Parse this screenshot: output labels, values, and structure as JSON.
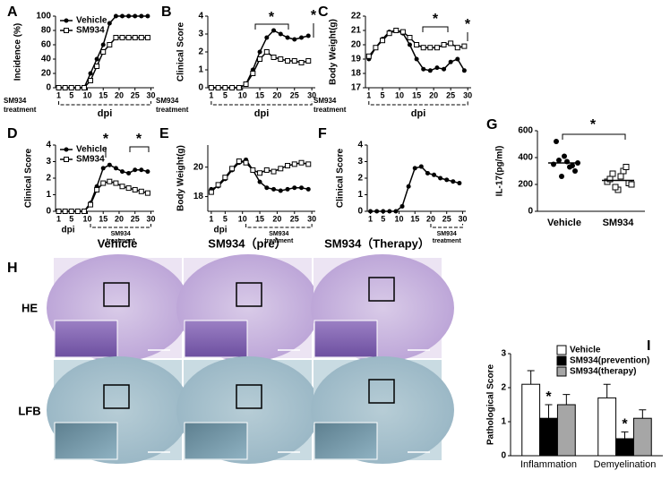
{
  "chart_data": [
    {
      "type": "line",
      "panel": "A",
      "ylabel": "Incidence (%)",
      "xlabel": "dpi",
      "treatment_label": [
        "SM934",
        "treatment"
      ],
      "treatment_days": [
        1,
        30
      ],
      "x": [
        1,
        3,
        5,
        7,
        9,
        11,
        13,
        15,
        17,
        19,
        21,
        23,
        25,
        27,
        29
      ],
      "xlim": [
        0,
        31
      ],
      "xticks": [
        1,
        5,
        10,
        15,
        20,
        25,
        30
      ],
      "ylim": [
        0,
        100
      ],
      "yticks": [
        0,
        20,
        40,
        60,
        80,
        100
      ],
      "legend": "upper left",
      "series": [
        {
          "name": "Vehicle",
          "color": "#000000",
          "marker": "circle",
          "values": [
            0,
            0,
            0,
            0,
            0,
            20,
            40,
            60,
            90,
            100,
            100,
            100,
            100,
            100,
            100
          ]
        },
        {
          "name": "SM934",
          "color": "#000000",
          "marker": "square",
          "values": [
            0,
            0,
            0,
            0,
            0,
            10,
            30,
            50,
            60,
            70,
            70,
            70,
            70,
            70,
            70
          ]
        }
      ]
    },
    {
      "type": "line",
      "panel": "B",
      "ylabel": "Clinical Score",
      "xlabel": "dpi",
      "treatment_label": [
        "SM934",
        "treatment"
      ],
      "treatment_days": [
        1,
        30
      ],
      "x": [
        1,
        3,
        5,
        7,
        9,
        11,
        13,
        15,
        17,
        19,
        21,
        23,
        25,
        27,
        29
      ],
      "xlim": [
        0,
        31
      ],
      "xticks": [
        1,
        5,
        10,
        15,
        20,
        25,
        30
      ],
      "ylim": [
        0,
        4
      ],
      "yticks": [
        0,
        1,
        2,
        3,
        4
      ],
      "annotations": [
        "*",
        "*"
      ],
      "series": [
        {
          "color": "#000000",
          "marker": "circle",
          "values": [
            0,
            0,
            0,
            0,
            0,
            0.2,
            1.0,
            2.0,
            2.8,
            3.2,
            3.0,
            2.8,
            2.7,
            2.8,
            2.9
          ]
        },
        {
          "color": "#000000",
          "marker": "square",
          "values": [
            0,
            0,
            0,
            0,
            0,
            0.2,
            0.8,
            1.6,
            2.0,
            1.7,
            1.6,
            1.5,
            1.5,
            1.4,
            1.5
          ]
        }
      ]
    },
    {
      "type": "line",
      "panel": "C",
      "ylabel": "Body Weight(g)",
      "xlabel": "dpi",
      "treatment_label": [
        "SM934",
        "treatment"
      ],
      "treatment_days": [
        1,
        30
      ],
      "x": [
        1,
        3,
        5,
        7,
        9,
        11,
        13,
        15,
        17,
        19,
        21,
        23,
        25,
        27,
        29
      ],
      "xlim": [
        0,
        31
      ],
      "xticks": [
        1,
        5,
        10,
        15,
        20,
        25,
        30
      ],
      "ylim": [
        17,
        22
      ],
      "yticks": [
        17,
        18,
        19,
        20,
        21,
        22
      ],
      "annotations": [
        "*",
        "*"
      ],
      "series": [
        {
          "color": "#000000",
          "marker": "circle",
          "values": [
            19.0,
            19.8,
            20.4,
            20.9,
            21.0,
            20.8,
            20.0,
            19.0,
            18.3,
            18.2,
            18.4,
            18.3,
            18.8,
            19.0,
            18.2
          ]
        },
        {
          "color": "#000000",
          "marker": "square",
          "values": [
            19.2,
            19.8,
            20.3,
            20.8,
            21.0,
            20.9,
            20.5,
            20.0,
            19.8,
            19.8,
            19.8,
            20.0,
            20.1,
            19.8,
            19.9
          ]
        }
      ]
    },
    {
      "type": "line",
      "panel": "D",
      "ylabel": "Clinical Score",
      "xlabel": "dpi",
      "treatment_label": [
        "SM934",
        "treatment"
      ],
      "treatment_days": [
        11,
        30
      ],
      "x": [
        1,
        3,
        5,
        7,
        9,
        11,
        13,
        15,
        17,
        19,
        21,
        23,
        25,
        27,
        29
      ],
      "xlim": [
        0,
        31
      ],
      "xticks": [
        1,
        5,
        10,
        15,
        20,
        25,
        30
      ],
      "ylim": [
        0,
        4
      ],
      "yticks": [
        0,
        1,
        2,
        3,
        4
      ],
      "legend": "upper left",
      "annotations": [
        "*",
        "*"
      ],
      "series": [
        {
          "name": "Vehicle",
          "color": "#000000",
          "marker": "circle",
          "values": [
            0,
            0,
            0,
            0,
            0,
            0.5,
            1.5,
            2.6,
            2.8,
            2.6,
            2.4,
            2.3,
            2.5,
            2.5,
            2.4
          ]
        },
        {
          "name": "SM934",
          "color": "#000000",
          "marker": "square",
          "values": [
            0,
            0,
            0,
            0,
            0,
            0.4,
            1.3,
            1.7,
            1.8,
            1.7,
            1.5,
            1.4,
            1.3,
            1.2,
            1.1
          ]
        }
      ]
    },
    {
      "type": "line",
      "panel": "E",
      "ylabel": "Body Weight(g)",
      "xlabel": "dpi",
      "treatment_label": [
        "SM934",
        "treatment"
      ],
      "treatment_days": [
        11,
        30
      ],
      "x": [
        1,
        3,
        5,
        7,
        9,
        11,
        13,
        15,
        17,
        19,
        21,
        23,
        25,
        27,
        29
      ],
      "xlim": [
        0,
        31
      ],
      "xticks": [
        1,
        5,
        10,
        15,
        20,
        25,
        30
      ],
      "ylim": [
        17,
        21.5
      ],
      "yticks": [
        18,
        20
      ],
      "series": [
        {
          "color": "#000000",
          "marker": "circle",
          "values": [
            18.5,
            18.7,
            19.2,
            19.8,
            20.3,
            20.5,
            19.8,
            19.0,
            18.6,
            18.5,
            18.4,
            18.5,
            18.6,
            18.6,
            18.5
          ]
        },
        {
          "color": "#000000",
          "marker": "square",
          "values": [
            18.3,
            18.8,
            19.3,
            19.9,
            20.4,
            20.3,
            19.8,
            19.6,
            19.8,
            19.7,
            19.9,
            20.1,
            20.2,
            20.3,
            20.2
          ]
        }
      ]
    },
    {
      "type": "line",
      "panel": "F",
      "ylabel": "Clinical Score",
      "treatment_label": [
        "SM934",
        "treatment"
      ],
      "treatment_days": [
        20,
        30
      ],
      "x": [
        1,
        3,
        5,
        7,
        9,
        11,
        13,
        15,
        17,
        19,
        21,
        23,
        25,
        27,
        29
      ],
      "xlim": [
        0,
        31
      ],
      "xticks": [
        1,
        5,
        10,
        15,
        20,
        25,
        30
      ],
      "ylim": [
        0,
        4
      ],
      "yticks": [
        0,
        1,
        2,
        3,
        4
      ],
      "color": "#000000",
      "marker": "circle",
      "values": [
        0,
        0,
        0,
        0,
        0,
        0.3,
        1.5,
        2.6,
        2.7,
        2.3,
        2.2,
        2.0,
        1.9,
        1.8,
        1.7
      ]
    },
    {
      "type": "dot",
      "panel": "G",
      "ylabel": "IL-17(pg/ml)",
      "categories": [
        "Vehicle",
        "SM934"
      ],
      "markers": [
        "circle",
        "square"
      ],
      "ylim": [
        0,
        600
      ],
      "yticks": [
        0,
        200,
        400,
        600
      ],
      "points": [
        [
          350,
          380,
          410,
          330,
          300,
          520,
          260,
          370,
          340,
          360
        ],
        [
          220,
          280,
          160,
          300,
          210,
          240,
          180,
          260,
          330,
          200
        ]
      ],
      "means": [
        360,
        230
      ],
      "annotations": [
        "*"
      ]
    },
    {
      "type": "bar",
      "panel": "I",
      "ylabel": "Pathological Score",
      "categories": [
        "Inflammation",
        "Demyelination"
      ],
      "ylim": [
        0,
        3
      ],
      "yticks": [
        0,
        1,
        2,
        3
      ],
      "legend": "upper right",
      "annotations": [
        "*",
        "*"
      ],
      "series": [
        {
          "name": "Vehicle",
          "color": "#ffffff",
          "values": [
            2.1,
            1.7
          ],
          "errors": [
            0.4,
            0.4
          ]
        },
        {
          "name": "SM934(prevention)",
          "color": "#000000",
          "values": [
            1.1,
            0.5
          ],
          "errors": [
            0.4,
            0.2
          ]
        },
        {
          "name": "SM934(therapy)",
          "color": "#a6a6a6",
          "values": [
            1.5,
            1.1
          ],
          "errors": [
            0.3,
            0.25
          ]
        }
      ]
    }
  ],
  "figure_h": {
    "panel": "H",
    "columns": [
      "Vehicle",
      "SM934（pre）",
      "SM934（Therapy）"
    ],
    "rows": [
      "HE",
      "LFB"
    ]
  }
}
